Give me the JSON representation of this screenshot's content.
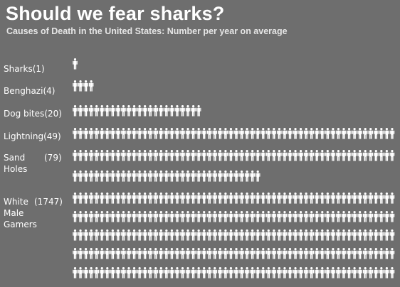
{
  "title": "Should we fear sharks?",
  "subtitle": "Causes of Death in the United States: Number per year on average",
  "colors": {
    "background": "#6e6e6e",
    "figure": "#ffffff"
  },
  "chart_data": {
    "type": "pictograph",
    "categories": [
      {
        "name": "Sharks",
        "value": 1,
        "label_name": "Sharks",
        "label_value": "(1)"
      },
      {
        "name": "Benghazi",
        "value": 4,
        "label_name": "Benghazi",
        "label_value": "(4)"
      },
      {
        "name": "Dog bites",
        "value": 20,
        "label_name": "Dog bites",
        "label_value": "(20)"
      },
      {
        "name": "Lightning",
        "value": 49,
        "label_name": "Lightning",
        "label_value": "(49)"
      },
      {
        "name": "Sand Holes",
        "value": 79,
        "label_name": [
          "Sand",
          "Holes"
        ],
        "label_value": "(79)"
      },
      {
        "name": "White Male Gamers",
        "value": 1747,
        "label_name": [
          "White",
          "Male",
          "Gamers"
        ],
        "label_value": "(1747)"
      }
    ]
  }
}
